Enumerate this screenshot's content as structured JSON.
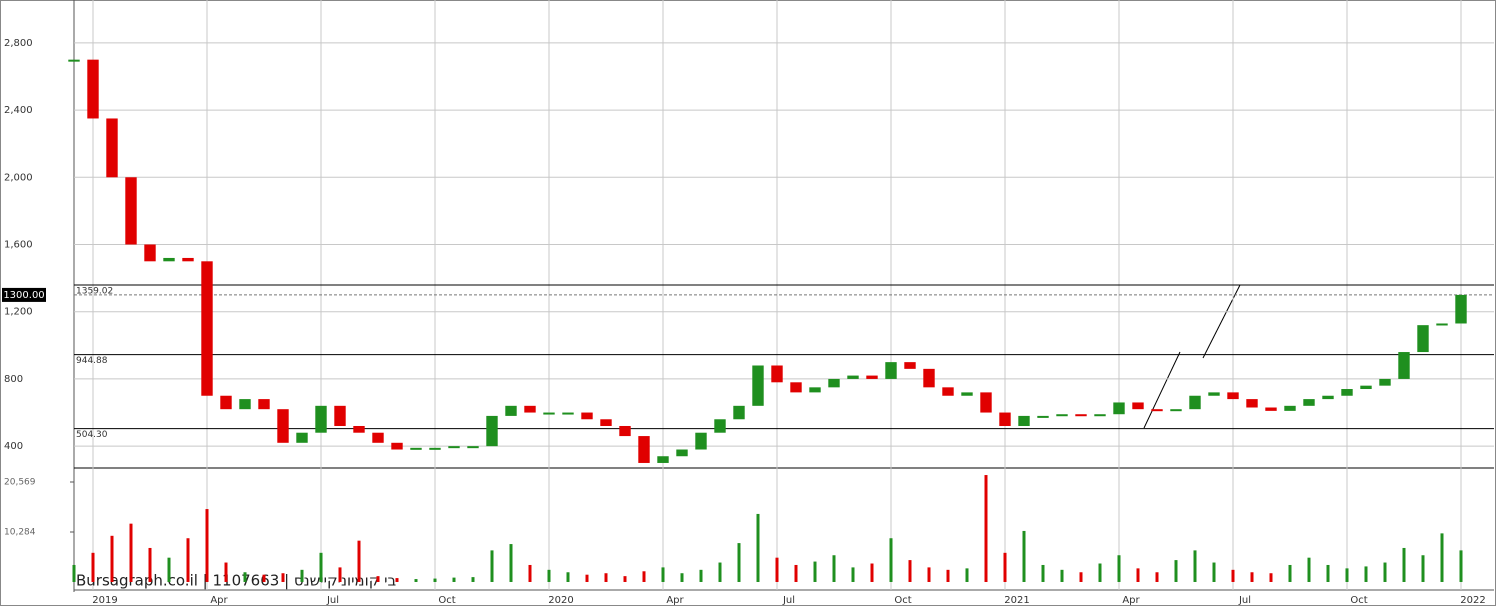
{
  "chart_data": {
    "type": "candlestick",
    "watermark": "Bursagraph.co.il | 1107663 | בי קומיוניקיישנס",
    "categories": [
      null,
      "2019",
      null,
      null,
      null,
      null,
      null,
      "Apr",
      null,
      null,
      null,
      null,
      null,
      "Jul",
      null,
      null,
      null,
      null,
      null,
      "Oct",
      null,
      null,
      null,
      null,
      null,
      "2020",
      null,
      null,
      null,
      null,
      null,
      "Apr",
      null,
      null,
      null,
      null,
      null,
      "Jul",
      null,
      null,
      null,
      null,
      null,
      "Oct",
      null,
      null,
      null,
      null,
      null,
      "2021",
      null,
      null,
      null,
      null,
      null,
      "Apr",
      null,
      null,
      null,
      null,
      null,
      "Jul",
      null,
      null,
      null,
      null,
      null,
      "Oct",
      null,
      null,
      null,
      null,
      null,
      "2022"
    ],
    "series": [
      {
        "values": [
          2700,
          2350,
          2000,
          1600,
          1500,
          1520,
          1500,
          700,
          620,
          680,
          620,
          420,
          480,
          640,
          520,
          480,
          420,
          380,
          390,
          390,
          400,
          400,
          580,
          640,
          600,
          600,
          600,
          560,
          520,
          460,
          300,
          340,
          380,
          480,
          560,
          640,
          880,
          780,
          720,
          750,
          800,
          820,
          800,
          900,
          860,
          750,
          700,
          720,
          600,
          520,
          580,
          580,
          590,
          580,
          590,
          660,
          620,
          610,
          620,
          700,
          720,
          680,
          630,
          610,
          640,
          680,
          700,
          740,
          760,
          800,
          960,
          1120,
          1130,
          1300
        ]
      },
      {
        "axis": "volume",
        "values": [
          3500,
          6000,
          9500,
          12000,
          7000,
          5000,
          9000,
          15000,
          4000,
          2000,
          1500,
          1800,
          2500,
          6000,
          3000,
          8500,
          1200,
          800,
          600,
          700,
          900,
          1000,
          6500,
          7800,
          3500,
          2500,
          2000,
          1500,
          1800,
          1200,
          2200,
          3000,
          1800,
          2500,
          4000,
          8000,
          14000,
          5000,
          3500,
          4200,
          5500,
          3000,
          3800,
          9000,
          4500,
          3000,
          2500,
          2800,
          22000,
          6000,
          10500,
          3500,
          2500,
          2000,
          3800,
          5500,
          2800,
          2000,
          4500,
          6500,
          4000,
          2500,
          2000,
          1800,
          3500,
          5000,
          3500,
          2800,
          3200,
          4000,
          7000,
          5500,
          10000,
          6500
        ]
      }
    ],
    "up_color": "#1f8f1f",
    "down_color": "#e00000",
    "ylim": [
      270,
      3055
    ],
    "yticks": [
      {
        "value": 400,
        "label": "400"
      },
      800,
      {
        "value": 1200,
        "label": "1,200"
      },
      {
        "value": 1600,
        "label": "1,600"
      },
      {
        "value": 2000,
        "label": "2,000"
      },
      {
        "value": 2400,
        "label": "2,400"
      },
      {
        "value": 2800,
        "label": "2,800"
      }
    ],
    "volume_lim": [
      -1650,
      23450
    ],
    "volume_ticks": [
      {
        "value": 10284,
        "label": "10,284"
      },
      {
        "value": 20569,
        "label": "20,569"
      }
    ],
    "levels": [
      1359.02,
      944.88,
      {
        "value": 504.3,
        "label": "504.30"
      }
    ],
    "last_price": {
      "value": 1300,
      "label": "1300.00"
    },
    "grid": true
  }
}
